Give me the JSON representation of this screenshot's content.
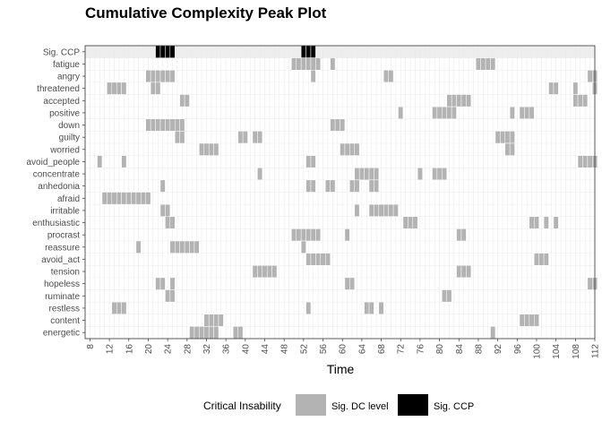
{
  "chart_data": {
    "type": "heatmap",
    "title": "Cumulative Complexity Peak Plot",
    "xlabel": "Time",
    "xlim": [
      7,
      112
    ],
    "x_ticks": [
      8,
      12,
      16,
      20,
      24,
      28,
      32,
      36,
      40,
      44,
      48,
      52,
      56,
      60,
      64,
      68,
      72,
      76,
      80,
      84,
      88,
      92,
      96,
      100,
      104,
      108,
      112
    ],
    "rows": [
      "Sig. CCP",
      "fatigue",
      "angry",
      "threatened",
      "accepted",
      "positive",
      "down",
      "guilty",
      "worried",
      "avoid_people",
      "concentrate",
      "anhedonia",
      "afraid",
      "irritable",
      "enthusiastic",
      "procrast",
      "reassure",
      "avoid_act",
      "tension",
      "hopeless",
      "ruminate",
      "restless",
      "content",
      "energetic"
    ],
    "legend": {
      "title": "Critical Insability",
      "position": "bottom",
      "items": [
        {
          "label": "Sig. DC level",
          "color": "#b3b3b3"
        },
        {
          "label": "Sig. CCP",
          "color": "#000000"
        }
      ]
    },
    "colors": {
      "dc": "#b3b3b3",
      "ccp": "#000000",
      "ccp_row_bg": "#eeeeee",
      "grid": "#ebebeb"
    },
    "grid": true,
    "series": [
      {
        "variable": "Sig. CCP",
        "level": "ccp",
        "times": [
          22,
          23,
          24,
          25,
          52,
          53,
          54
        ]
      },
      {
        "variable": "fatigue",
        "level": "dc",
        "times": [
          50,
          51,
          52,
          53,
          54,
          55,
          58,
          88,
          89,
          90,
          91
        ]
      },
      {
        "variable": "angry",
        "level": "dc",
        "times": [
          20,
          21,
          22,
          23,
          24,
          25,
          54,
          69,
          70,
          111,
          112
        ]
      },
      {
        "variable": "threatened",
        "level": "dc",
        "times": [
          12,
          13,
          14,
          15,
          21,
          22,
          103,
          104,
          108,
          112
        ]
      },
      {
        "variable": "accepted",
        "level": "dc",
        "times": [
          27,
          28,
          82,
          83,
          84,
          85,
          86,
          108,
          109,
          110
        ]
      },
      {
        "variable": "positive",
        "level": "dc",
        "times": [
          72,
          79,
          80,
          81,
          82,
          83,
          95,
          97,
          98,
          99
        ]
      },
      {
        "variable": "down",
        "level": "dc",
        "times": [
          20,
          21,
          22,
          23,
          24,
          25,
          26,
          27,
          58,
          59,
          60
        ]
      },
      {
        "variable": "guilty",
        "level": "dc",
        "times": [
          26,
          27,
          39,
          40,
          42,
          43,
          92,
          93,
          94,
          95
        ]
      },
      {
        "variable": "worried",
        "level": "dc",
        "times": [
          31,
          32,
          33,
          34,
          60,
          61,
          62,
          63,
          94,
          95
        ]
      },
      {
        "variable": "avoid_people",
        "level": "dc",
        "times": [
          10,
          15,
          53,
          54,
          109,
          110,
          111,
          112
        ]
      },
      {
        "variable": "concentrate",
        "level": "dc",
        "times": [
          43,
          63,
          64,
          65,
          66,
          67,
          76,
          79,
          80,
          81
        ]
      },
      {
        "variable": "anhedonia",
        "level": "dc",
        "times": [
          23,
          53,
          54,
          57,
          58,
          62,
          63,
          66,
          67
        ]
      },
      {
        "variable": "afraid",
        "level": "dc",
        "times": [
          11,
          12,
          13,
          14,
          15,
          16,
          17,
          18,
          19,
          20
        ]
      },
      {
        "variable": "irritable",
        "level": "dc",
        "times": [
          23,
          24,
          63,
          66,
          67,
          68,
          69,
          70,
          71
        ]
      },
      {
        "variable": "enthusiastic",
        "level": "dc",
        "times": [
          24,
          25,
          73,
          74,
          75,
          99,
          100,
          102,
          104
        ]
      },
      {
        "variable": "procrast",
        "level": "dc",
        "times": [
          50,
          51,
          52,
          53,
          54,
          55,
          61,
          84,
          85
        ]
      },
      {
        "variable": "reassure",
        "level": "dc",
        "times": [
          18,
          25,
          26,
          27,
          28,
          29,
          30,
          52
        ]
      },
      {
        "variable": "avoid_act",
        "level": "dc",
        "times": [
          53,
          54,
          55,
          56,
          57,
          100,
          101,
          102
        ]
      },
      {
        "variable": "tension",
        "level": "dc",
        "times": [
          42,
          43,
          44,
          45,
          46,
          84,
          85,
          86
        ]
      },
      {
        "variable": "hopeless",
        "level": "dc",
        "times": [
          22,
          23,
          25,
          61,
          62,
          111,
          112
        ]
      },
      {
        "variable": "ruminate",
        "level": "dc",
        "times": [
          24,
          25,
          81,
          82
        ]
      },
      {
        "variable": "restless",
        "level": "dc",
        "times": [
          13,
          14,
          15,
          53,
          65,
          66,
          68
        ]
      },
      {
        "variable": "content",
        "level": "dc",
        "times": [
          32,
          33,
          34,
          35,
          97,
          98,
          99,
          100
        ]
      },
      {
        "variable": "energetic",
        "level": "dc",
        "times": [
          29,
          30,
          31,
          32,
          33,
          34,
          38,
          39,
          91
        ]
      }
    ]
  }
}
